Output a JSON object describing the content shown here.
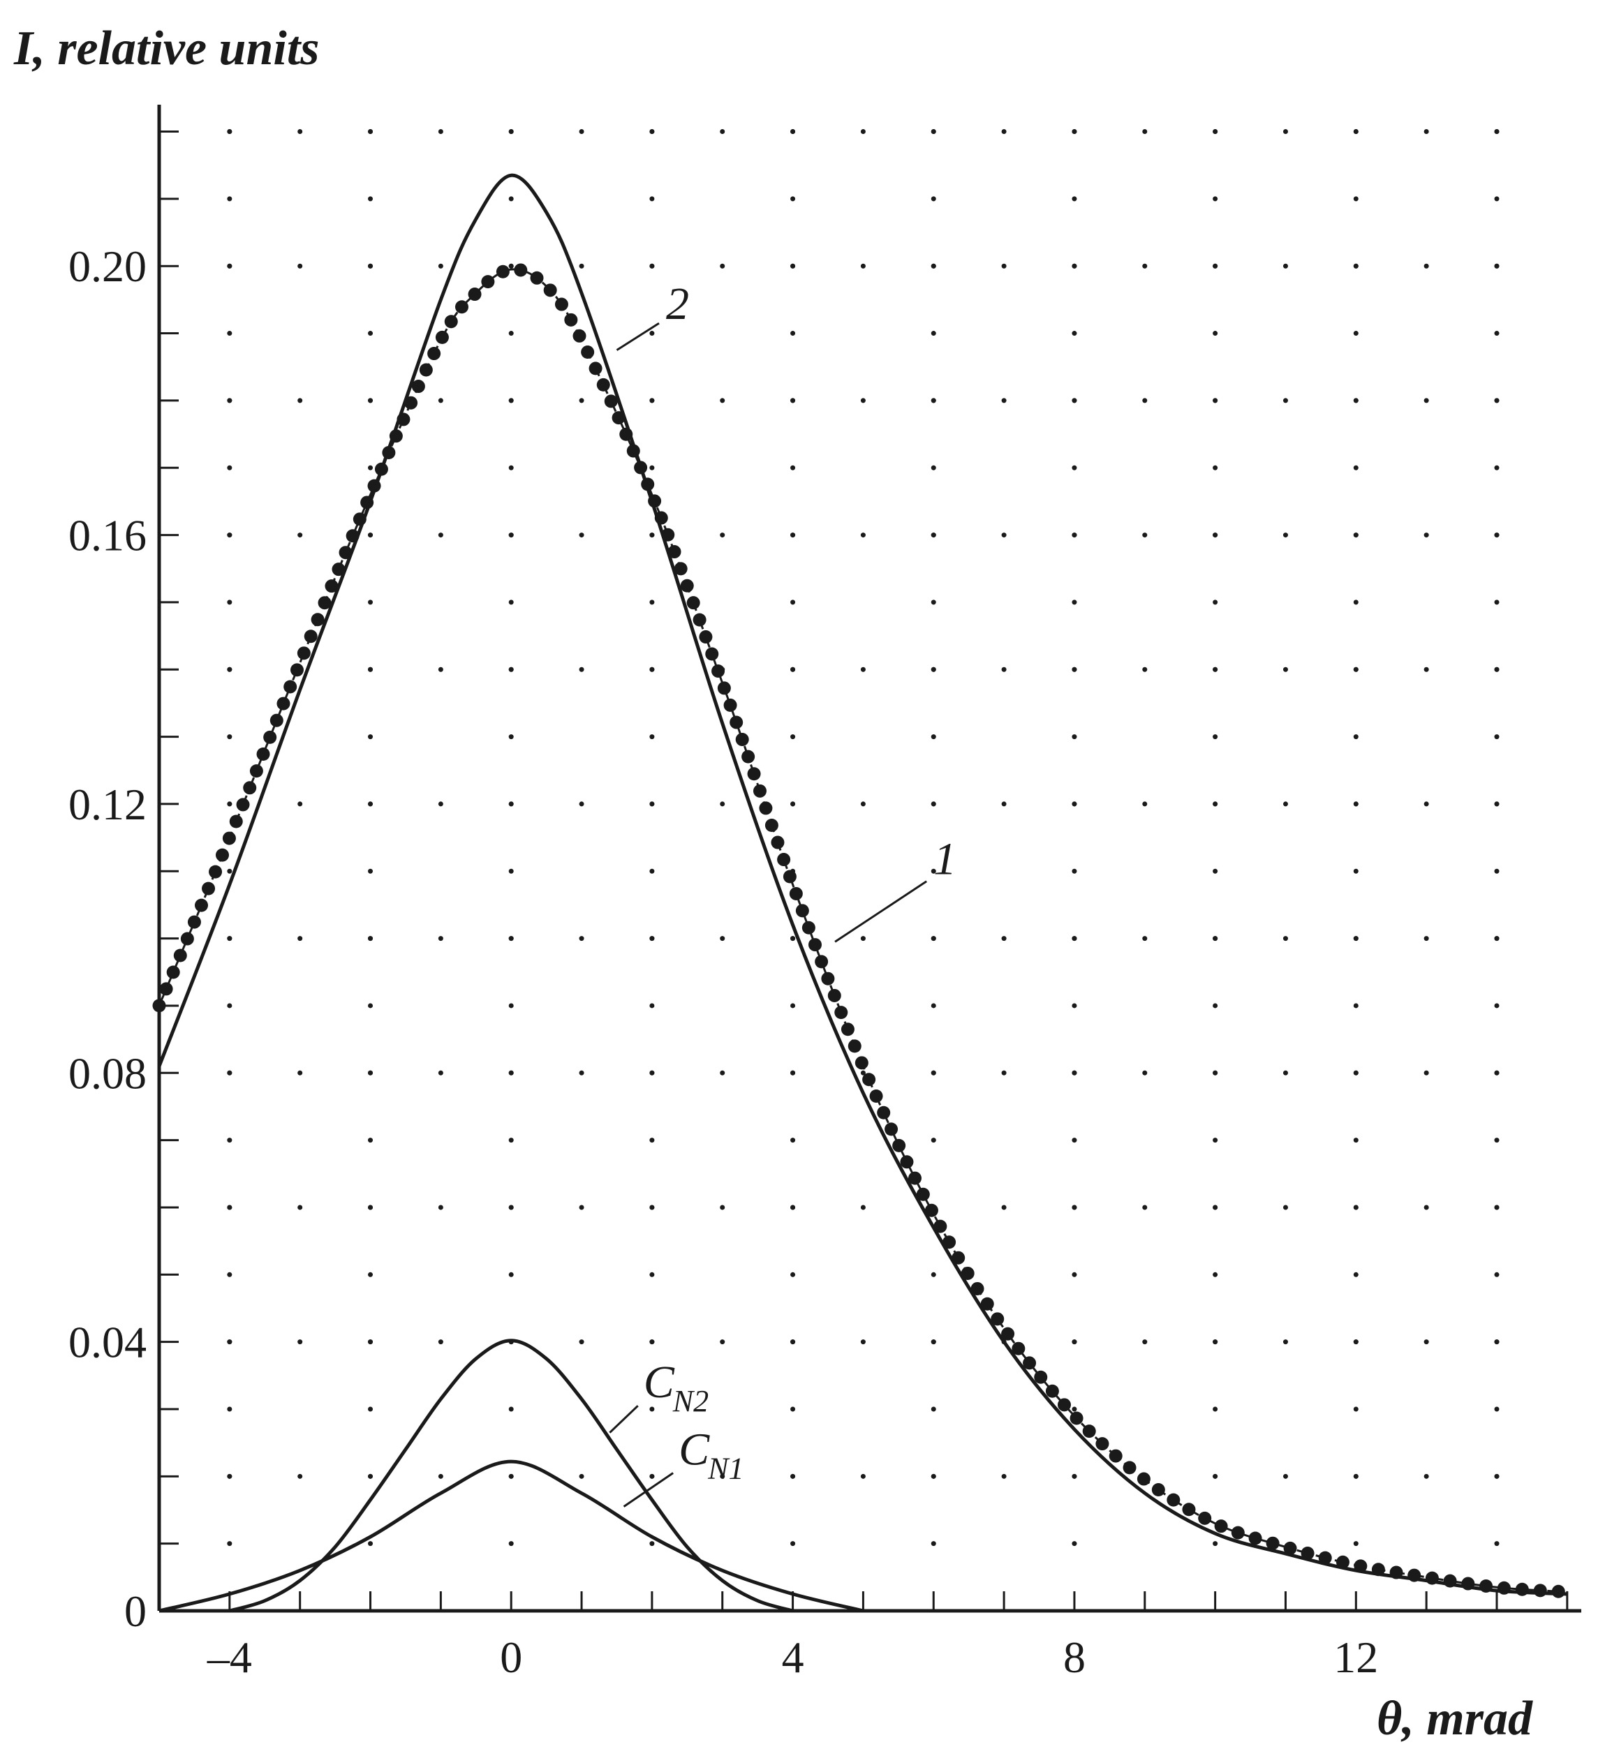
{
  "chart_data": {
    "type": "line",
    "xlabel": "θ, mrad",
    "ylabel": "I, relative units",
    "xlim": [
      -5,
      15.2
    ],
    "ylim": [
      0,
      0.224
    ],
    "xticks": [
      -4,
      0,
      4,
      8,
      12
    ],
    "xtick_labels": [
      "–4",
      "0",
      "4",
      "8",
      "12"
    ],
    "yticks": [
      0,
      0.04,
      0.08,
      0.12,
      0.16,
      0.2
    ],
    "ytick_labels": [
      "0",
      "0.04",
      "0.08",
      "0.12",
      "0.16",
      "0.20"
    ],
    "grid": "dotted",
    "series": [
      {
        "name": "1",
        "style": "solid",
        "x": [
          -5,
          -4,
          -3,
          -2,
          -1,
          -0.5,
          0,
          0.5,
          1,
          2,
          3,
          4,
          5,
          6,
          7,
          8,
          9,
          10,
          11,
          12,
          13,
          14,
          15
        ],
        "y": [
          0.081,
          0.108,
          0.137,
          0.165,
          0.195,
          0.207,
          0.2135,
          0.208,
          0.196,
          0.165,
          0.132,
          0.102,
          0.077,
          0.057,
          0.04,
          0.027,
          0.0175,
          0.0115,
          0.0085,
          0.006,
          0.0045,
          0.003,
          0.0025
        ]
      },
      {
        "name": "2",
        "style": "dotted-marker",
        "x": [
          -5,
          -4,
          -3,
          -2,
          -1,
          -0.5,
          0,
          0.5,
          1,
          2,
          3,
          4,
          5,
          6,
          7,
          8,
          9,
          10,
          11,
          12,
          13,
          14,
          15
        ],
        "y": [
          0.09,
          0.115,
          0.141,
          0.166,
          0.189,
          0.196,
          0.1995,
          0.197,
          0.189,
          0.166,
          0.138,
          0.108,
          0.081,
          0.059,
          0.042,
          0.029,
          0.0195,
          0.013,
          0.0095,
          0.0068,
          0.005,
          0.0035,
          0.0028
        ]
      },
      {
        "name": "C_N2",
        "style": "solid",
        "x": [
          -4,
          -3.5,
          -3,
          -2.5,
          -2,
          -1.5,
          -1,
          -0.5,
          0,
          0.5,
          1,
          1.5,
          2,
          2.5,
          3,
          3.5,
          4
        ],
        "y": [
          0,
          0.0015,
          0.0045,
          0.0095,
          0.0165,
          0.024,
          0.0315,
          0.0375,
          0.0402,
          0.0375,
          0.0315,
          0.024,
          0.0165,
          0.0095,
          0.0045,
          0.0015,
          0
        ]
      },
      {
        "name": "C_N1",
        "style": "solid",
        "x": [
          -5,
          -4,
          -3,
          -2,
          -1,
          0,
          1,
          2,
          3,
          4,
          5
        ],
        "y": [
          0,
          0.0025,
          0.006,
          0.011,
          0.0175,
          0.0222,
          0.0175,
          0.011,
          0.006,
          0.0025,
          0
        ]
      }
    ],
    "annotations": [
      {
        "text": "1",
        "series": "1"
      },
      {
        "text": "2",
        "series": "2"
      },
      {
        "text": "C",
        "sub": "N2",
        "series": "C_N2"
      },
      {
        "text": "C",
        "sub": "N1",
        "series": "C_N1"
      }
    ]
  },
  "colors": {
    "ink": "#1a1a1a",
    "background": "#ffffff"
  }
}
